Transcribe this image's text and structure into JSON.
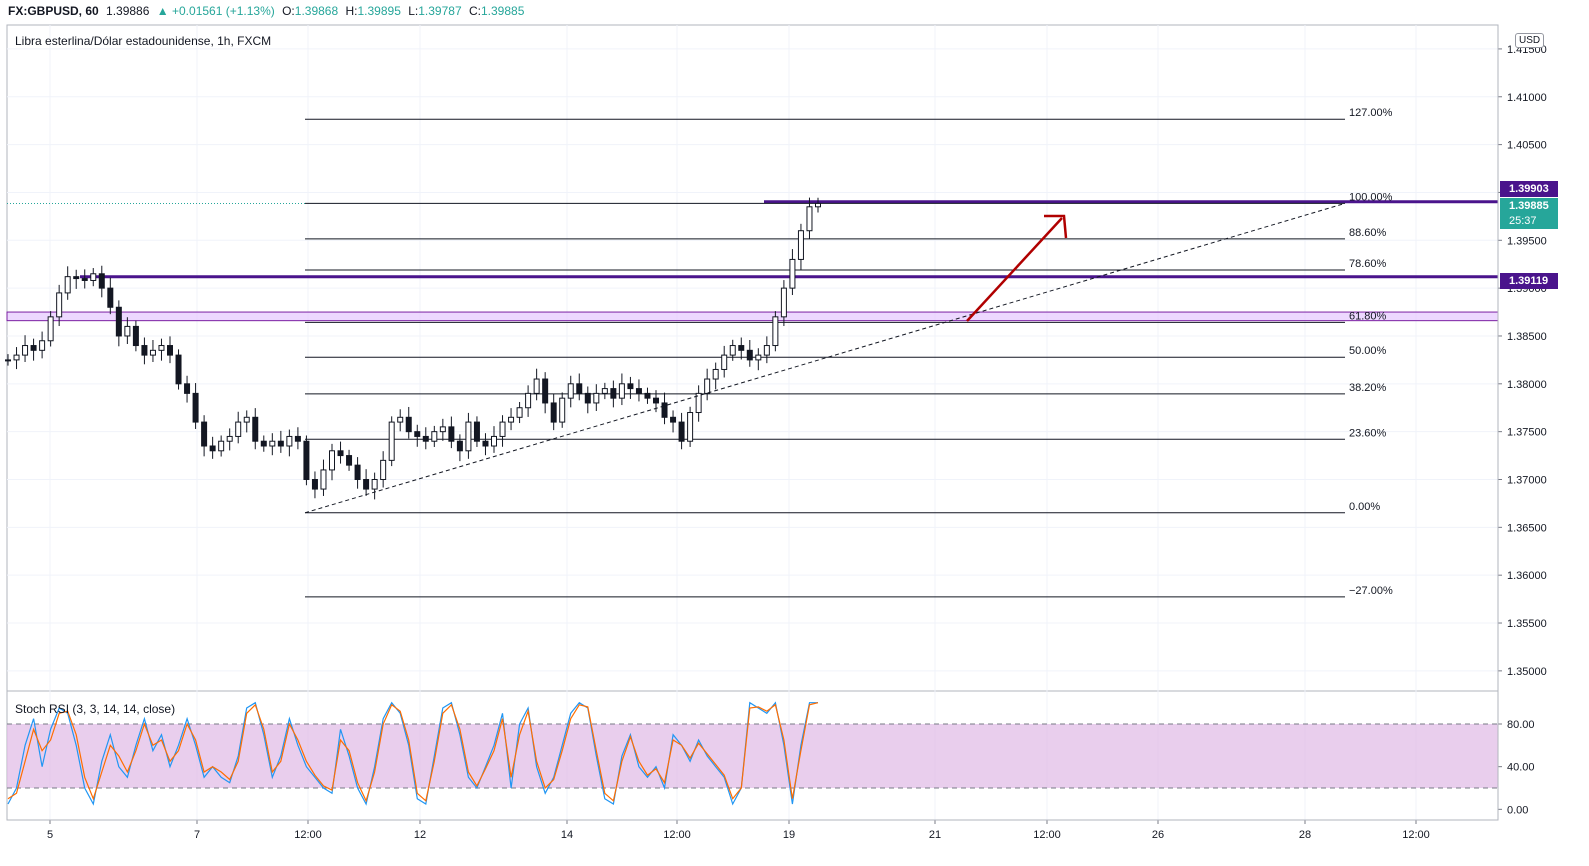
{
  "header": {
    "symbol": "FX:GBPUSD, 60",
    "last": "1.39886",
    "change": "+0.01561 (+1.13%)",
    "o_label": "O:",
    "o_value": "1.39868",
    "h_label": "H:",
    "h_value": "1.39895",
    "l_label": "L:",
    "l_value": "1.39787",
    "c_label": "C:",
    "c_value": "1.39885"
  },
  "pane_title": "Libra esterlina/Dólar estadounidense, 1h, FXCM",
  "currency_badge": "USD",
  "price_tags": {
    "upper_level": "1.39903",
    "last_price": "1.39885",
    "countdown": "25:37",
    "mid_level": "1.39119"
  },
  "stoch_title": "Stoch RSI (3, 3, 14, 14, close)",
  "colors": {
    "up": "#26a69a",
    "candle": "#131722",
    "level_line": "#4a148c",
    "level_zone": "#e6c8ff",
    "arrow": "#b00000",
    "last_price_bg": "#26a69a",
    "k_line": "#2196f3",
    "d_line": "#ff6d00"
  },
  "chart_data": [
    {
      "type": "candlestick",
      "title": "Libra esterlina/Dólar estadounidense, 1h, FXCM",
      "x_tick_labels": [
        "5",
        "7",
        "12:00",
        "12",
        "14",
        "12:00",
        "19",
        "21",
        "12:00",
        "26",
        "28",
        "12:00"
      ],
      "y_tick_labels": [
        "1.41500",
        "1.41000",
        "1.40500",
        "1.40000",
        "1.39500",
        "1.39000",
        "1.38500",
        "1.38000",
        "1.37500",
        "1.37000",
        "1.36500",
        "1.36000",
        "1.35500",
        "1.35000"
      ],
      "ylim": [
        1.348,
        1.4175
      ],
      "price_path_close": [
        1.3825,
        1.383,
        1.384,
        1.3835,
        1.3845,
        1.387,
        1.3895,
        1.3912,
        1.391,
        1.3908,
        1.3915,
        1.39,
        1.388,
        1.385,
        1.386,
        1.384,
        1.383,
        1.3835,
        1.384,
        1.383,
        1.38,
        1.379,
        1.376,
        1.3735,
        1.373,
        1.374,
        1.3745,
        1.376,
        1.3765,
        1.374,
        1.3735,
        1.374,
        1.3735,
        1.3745,
        1.374,
        1.37,
        1.369,
        1.371,
        1.373,
        1.3725,
        1.3715,
        1.37,
        1.369,
        1.37,
        1.372,
        1.376,
        1.3765,
        1.375,
        1.3745,
        1.374,
        1.375,
        1.3755,
        1.374,
        1.373,
        1.376,
        1.374,
        1.3735,
        1.3745,
        1.376,
        1.3765,
        1.3775,
        1.379,
        1.3805,
        1.378,
        1.376,
        1.3785,
        1.38,
        1.379,
        1.378,
        1.379,
        1.3795,
        1.3785,
        1.38,
        1.3795,
        1.379,
        1.3785,
        1.378,
        1.3765,
        1.376,
        1.374,
        1.377,
        1.379,
        1.3805,
        1.3815,
        1.383,
        1.384,
        1.3835,
        1.3825,
        1.383,
        1.384,
        1.387,
        1.39,
        1.393,
        1.396,
        1.3985,
        1.39885
      ],
      "fibonacci": [
        {
          "label": "127.00%",
          "value": 1.40765
        },
        {
          "label": "100.00%",
          "value": 1.39886
        },
        {
          "label": "88.60%",
          "value": 1.39515
        },
        {
          "label": "78.60%",
          "value": 1.39189
        },
        {
          "label": "61.80%",
          "value": 1.38642
        },
        {
          "label": "50.00%",
          "value": 1.38278
        },
        {
          "label": "38.20%",
          "value": 1.37895
        },
        {
          "label": "23.60%",
          "value": 1.3742
        },
        {
          "label": "0.00%",
          "value": 1.36652
        },
        {
          "label": "−27.00%",
          "value": 1.35773
        }
      ],
      "horizontal_levels": [
        1.39903,
        1.39119
      ],
      "zone": [
        1.3866,
        1.3875
      ]
    },
    {
      "type": "line",
      "title": "Stoch RSI (3, 3, 14, 14, close)",
      "y_tick_labels": [
        "80.00",
        "40.00",
        "0.00"
      ],
      "ylim": [
        -10,
        110
      ],
      "bands": [
        20,
        80
      ],
      "series": [
        {
          "values": [
            5,
            20,
            60,
            85,
            40,
            75,
            95,
            90,
            60,
            20,
            5,
            45,
            70,
            40,
            30,
            60,
            85,
            55,
            70,
            40,
            60,
            85,
            60,
            30,
            40,
            30,
            25,
            50,
            95,
            100,
            70,
            30,
            50,
            85,
            60,
            40,
            30,
            20,
            15,
            75,
            50,
            20,
            5,
            40,
            85,
            100,
            90,
            60,
            10,
            5,
            50,
            95,
            100,
            70,
            30,
            20,
            40,
            60,
            90,
            20,
            80,
            95,
            40,
            15,
            30,
            60,
            90,
            100,
            95,
            50,
            10,
            5,
            50,
            70,
            40,
            30,
            40,
            20,
            70,
            60,
            45,
            65,
            50,
            40,
            30,
            5,
            20,
            100,
            95,
            90,
            100,
            60,
            5,
            60,
            100,
            100
          ]
        },
        {
          "values": [
            10,
            15,
            45,
            75,
            55,
            65,
            90,
            92,
            70,
            30,
            10,
            35,
            60,
            50,
            35,
            55,
            80,
            60,
            65,
            45,
            55,
            80,
            65,
            35,
            40,
            35,
            28,
            45,
            90,
            98,
            75,
            35,
            45,
            80,
            65,
            45,
            32,
            22,
            18,
            65,
            55,
            25,
            8,
            35,
            80,
            98,
            92,
            65,
            15,
            8,
            45,
            90,
            98,
            75,
            35,
            22,
            38,
            55,
            85,
            30,
            70,
            92,
            45,
            20,
            28,
            55,
            85,
            98,
            96,
            55,
            15,
            8,
            45,
            68,
            45,
            32,
            38,
            25,
            65,
            60,
            48,
            62,
            52,
            42,
            32,
            10,
            20,
            95,
            96,
            92,
            98,
            65,
            10,
            55,
            98,
            100
          ]
        }
      ]
    }
  ]
}
